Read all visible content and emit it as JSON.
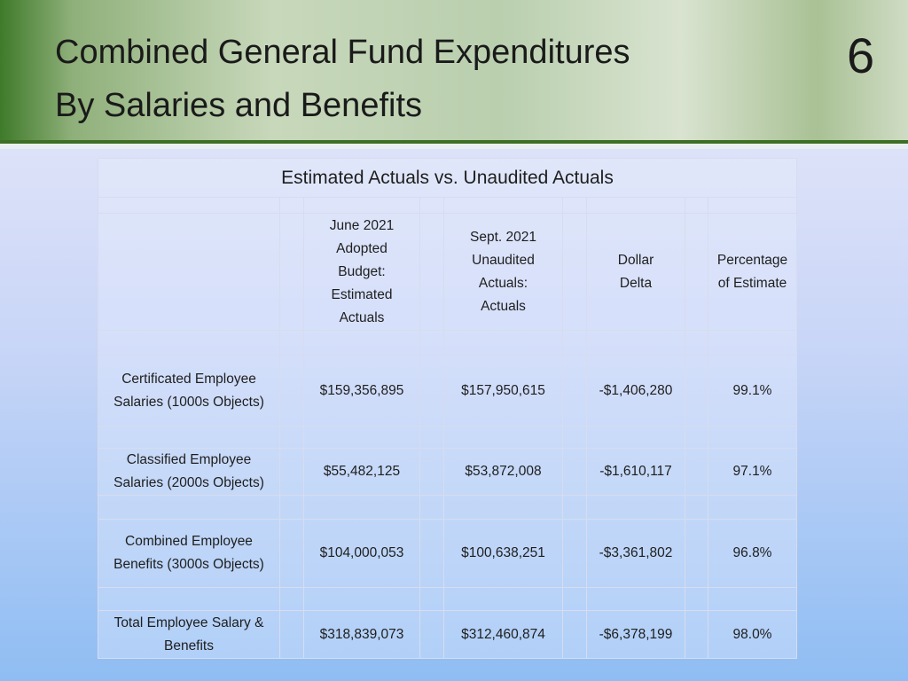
{
  "header": {
    "title": [
      "Combined General Fund Expenditures",
      "By Salaries and Benefits"
    ],
    "slide_number": "6"
  },
  "table": {
    "caption": "Estimated Actuals vs. Unaudited Actuals",
    "columns": [
      [
        "June 2021",
        "Adopted",
        "Budget:",
        "Estimated",
        "Actuals"
      ],
      [
        "Sept. 2021",
        "Unaudited",
        "Actuals:",
        "Actuals"
      ],
      [
        "Dollar",
        "Delta"
      ],
      [
        "Percentage",
        "of Estimate"
      ]
    ],
    "rows": [
      {
        "label": [
          "Certificated Employee",
          "Salaries (1000s Objects)"
        ],
        "cells": [
          "$159,356,895",
          "$157,950,615",
          "-$1,406,280",
          "99.1%"
        ]
      },
      {
        "label": [
          "Classified Employee",
          "Salaries (2000s Objects)"
        ],
        "cells": [
          "$55,482,125",
          "$53,872,008",
          "-$1,610,117",
          "97.1%"
        ]
      },
      {
        "label": [
          "Combined Employee",
          "Benefits (3000s Objects)"
        ],
        "cells": [
          "$104,000,053",
          "$100,638,251",
          "-$3,361,802",
          "96.8%"
        ]
      },
      {
        "label": [
          "Total Employee Salary &",
          "Benefits"
        ],
        "cells": [
          "$318,839,073",
          "$312,460,874",
          "-$6,378,199",
          "98.0%"
        ]
      }
    ]
  }
}
